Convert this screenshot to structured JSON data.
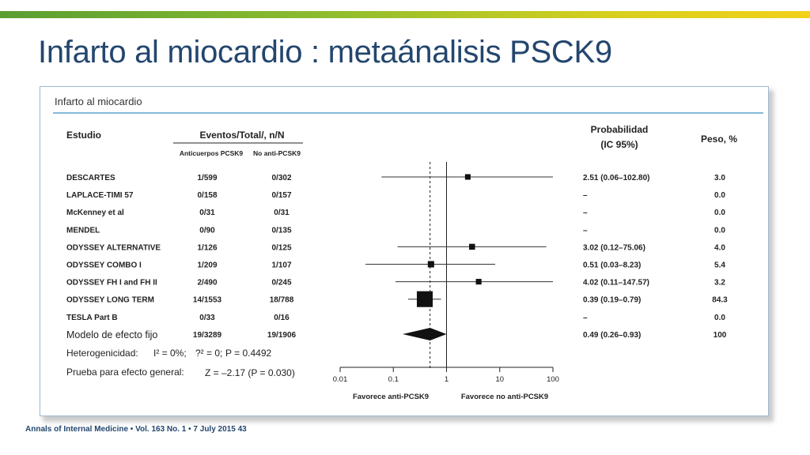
{
  "slide": {
    "title": "Infarto al miocardio : metaánalisis PSCK9",
    "citation": "Annals of Internal Medicine • Vol. 163 No. 1 • 7 July 2015 43",
    "accent_color": "#23466e"
  },
  "panel": {
    "heading": "Infarto al miocardio",
    "headers": {
      "study": "Estudio",
      "events": "Eventos/Total/, n/N",
      "arm1": "Anticuerpos PCSK9",
      "arm2": "No anti-PCSK9",
      "prob_line1": "Probabilidad",
      "prob_line2": "(IC 95%)",
      "weight": "Peso, %"
    }
  },
  "chart_data": {
    "type": "forest",
    "x_scale": "log",
    "xlim": [
      0.01,
      100
    ],
    "x_ticks": [
      "0.01",
      "0.1",
      "1",
      "10",
      "100"
    ],
    "reference_line": 1,
    "pooled_line": 0.49,
    "xlabel_left": "Favorece anti-PCSK9",
    "xlabel_right": "Favorece no anti-PCSK9",
    "studies": [
      {
        "name": "DESCARTES",
        "arm1": "1/599",
        "arm2": "0/302",
        "or": 2.51,
        "lo": 0.06,
        "hi": 102.8,
        "ci_text": "2.51 (0.06–102.80)",
        "weight": 3.0,
        "weight_text": "3.0"
      },
      {
        "name": "LAPLACE-TIMI 57",
        "arm1": "0/158",
        "arm2": "0/157",
        "or": null,
        "lo": null,
        "hi": null,
        "ci_text": "–",
        "weight": 0.0,
        "weight_text": "0.0"
      },
      {
        "name": "McKenney et al",
        "arm1": "0/31",
        "arm2": "0/31",
        "or": null,
        "lo": null,
        "hi": null,
        "ci_text": "–",
        "weight": 0.0,
        "weight_text": "0.0"
      },
      {
        "name": "MENDEL",
        "arm1": "0/90",
        "arm2": "0/135",
        "or": null,
        "lo": null,
        "hi": null,
        "ci_text": "–",
        "weight": 0.0,
        "weight_text": "0.0"
      },
      {
        "name": "ODYSSEY ALTERNATIVE",
        "arm1": "1/126",
        "arm2": "0/125",
        "or": 3.02,
        "lo": 0.12,
        "hi": 75.06,
        "ci_text": "3.02 (0.12–75.06)",
        "weight": 4.0,
        "weight_text": "4.0"
      },
      {
        "name": "ODYSSEY COMBO I",
        "arm1": "1/209",
        "arm2": "1/107",
        "or": 0.51,
        "lo": 0.03,
        "hi": 8.23,
        "ci_text": "0.51 (0.03–8.23)",
        "weight": 5.4,
        "weight_text": "5.4"
      },
      {
        "name": "ODYSSEY FH I and FH II",
        "arm1": "2/490",
        "arm2": "0/245",
        "or": 4.02,
        "lo": 0.11,
        "hi": 147.57,
        "ci_text": "4.02 (0.11–147.57)",
        "weight": 3.2,
        "weight_text": "3.2"
      },
      {
        "name": "ODYSSEY LONG TERM",
        "arm1": "14/1553",
        "arm2": "18/788",
        "or": 0.39,
        "lo": 0.19,
        "hi": 0.79,
        "ci_text": "0.39 (0.19–0.79)",
        "weight": 84.3,
        "weight_text": "84.3"
      },
      {
        "name": "TESLA Part B",
        "arm1": "0/33",
        "arm2": "0/16",
        "or": null,
        "lo": null,
        "hi": null,
        "ci_text": "–",
        "weight": 0.0,
        "weight_text": "0.0"
      }
    ],
    "pooled": {
      "name": "Modelo de efecto fijo",
      "arm1": "19/3289",
      "arm2": "19/1906",
      "or": 0.49,
      "lo": 0.26,
      "hi": 0.93,
      "ci_text": "0.49 (0.26–0.93)",
      "weight_text": "100"
    },
    "heterogeneity": {
      "label": "Heterogenicidad:",
      "i2": "I² = 0%;",
      "tau2": "?² = 0;",
      "p": "P = 0.4492"
    },
    "overall": {
      "label": "Prueba para efecto general:",
      "z": "Z = –2.17 (P = 0.030)"
    }
  }
}
